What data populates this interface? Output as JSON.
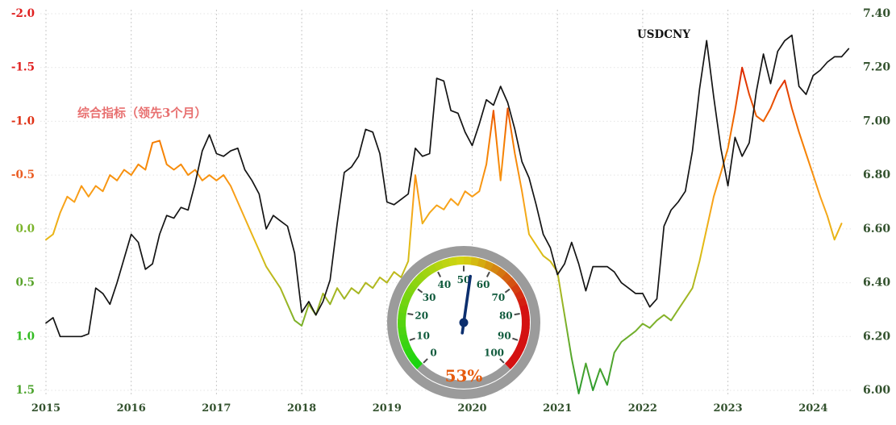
{
  "annotations": {
    "indicator_label": "综合指标（领先3个月）",
    "indicator_label_color": "#e87070",
    "usdcny_label": "USDCNY",
    "usdcny_label_color": "#141414"
  },
  "chart_data": {
    "type": "line",
    "title": "",
    "x_start_year": 2015,
    "x_step_months": 1,
    "x_tick_labels": [
      "2015",
      "2016",
      "2017",
      "2018",
      "2019",
      "2020",
      "2021",
      "2022",
      "2023",
      "2024"
    ],
    "x_axis_color": "#33522e",
    "grid": "dashed-vertical-yearly",
    "left_axis": {
      "min": -2.0,
      "max": 1.5,
      "inverted": true,
      "ticks": [
        -2.0,
        -1.5,
        -1.0,
        -0.5,
        0.0,
        0.5,
        1.0,
        1.5
      ],
      "tick_labels": [
        "-2.0",
        "-1.5",
        "-1.0",
        "-0.5",
        "0.0",
        "0.5",
        "1.0",
        "1.5"
      ],
      "tick_colors": [
        "#e02020",
        "#e02020",
        "#df3014",
        "#ea5c22",
        "#7ab32a",
        "#58a32a",
        "#32bb22",
        "#4ba32c"
      ]
    },
    "right_axis": {
      "min": 6.0,
      "max": 7.4,
      "ticks": [
        7.4,
        7.2,
        7.0,
        6.8,
        6.6,
        6.4,
        6.2,
        6.0
      ],
      "tick_labels": [
        "7.40",
        "7.20",
        "7.00",
        "6.80",
        "6.60",
        "6.40",
        "6.20",
        "6.00"
      ],
      "color": "#33522e"
    },
    "gradient_stops": [
      {
        "offset": 0.0,
        "color": "#c40000"
      },
      {
        "offset": 0.17,
        "color": "#e03000"
      },
      {
        "offset": 0.34,
        "color": "#f57c00"
      },
      {
        "offset": 0.5,
        "color": "#f9a21b"
      },
      {
        "offset": 0.62,
        "color": "#e3bc14"
      },
      {
        "offset": 0.72,
        "color": "#b0b820"
      },
      {
        "offset": 0.84,
        "color": "#74b02c"
      },
      {
        "offset": 1.0,
        "color": "#2e9b2e"
      }
    ],
    "series": [
      {
        "name": "综合指标（领先3个月）",
        "data_name": "composite-indicator-line",
        "axis": "left",
        "color_mode": "gradient",
        "width": 2,
        "values": [
          0.1,
          0.05,
          -0.15,
          -0.3,
          -0.25,
          -0.4,
          -0.3,
          -0.4,
          -0.35,
          -0.5,
          -0.45,
          -0.55,
          -0.5,
          -0.6,
          -0.55,
          -0.8,
          -0.82,
          -0.6,
          -0.55,
          -0.6,
          -0.5,
          -0.55,
          -0.45,
          -0.5,
          -0.45,
          -0.5,
          -0.4,
          -0.25,
          -0.1,
          0.05,
          0.2,
          0.35,
          0.45,
          0.55,
          0.7,
          0.85,
          0.9,
          0.7,
          0.8,
          0.6,
          0.7,
          0.55,
          0.65,
          0.55,
          0.6,
          0.5,
          0.55,
          0.45,
          0.5,
          0.4,
          0.45,
          0.3,
          -0.5,
          -0.05,
          -0.15,
          -0.22,
          -0.18,
          -0.28,
          -0.22,
          -0.35,
          -0.3,
          -0.35,
          -0.6,
          -1.1,
          -0.45,
          -1.12,
          -0.7,
          -0.35,
          0.05,
          0.15,
          0.25,
          0.3,
          0.4,
          0.8,
          1.2,
          1.53,
          1.25,
          1.5,
          1.3,
          1.45,
          1.15,
          1.05,
          1.0,
          0.95,
          0.88,
          0.92,
          0.85,
          0.8,
          0.85,
          0.75,
          0.65,
          0.55,
          0.3,
          0.0,
          -0.3,
          -0.52,
          -0.75,
          -1.1,
          -1.5,
          -1.25,
          -1.05,
          -1.0,
          -1.12,
          -1.28,
          -1.38,
          -1.12,
          -0.9,
          -0.7,
          -0.5,
          -0.3,
          -0.12,
          0.1,
          -0.05
        ]
      },
      {
        "name": "USDCNY",
        "data_name": "usdcny-line",
        "axis": "right",
        "color": "#141414",
        "width": 1.7,
        "values": [
          6.25,
          6.27,
          6.2,
          6.2,
          6.2,
          6.2,
          6.21,
          6.38,
          6.36,
          6.32,
          6.4,
          6.49,
          6.58,
          6.55,
          6.45,
          6.47,
          6.58,
          6.65,
          6.64,
          6.68,
          6.67,
          6.77,
          6.89,
          6.95,
          6.88,
          6.87,
          6.89,
          6.9,
          6.82,
          6.78,
          6.73,
          6.6,
          6.65,
          6.63,
          6.61,
          6.51,
          6.29,
          6.33,
          6.28,
          6.33,
          6.41,
          6.62,
          6.81,
          6.83,
          6.87,
          6.97,
          6.96,
          6.88,
          6.7,
          6.69,
          6.71,
          6.73,
          6.9,
          6.87,
          6.88,
          7.16,
          7.15,
          7.04,
          7.03,
          6.96,
          6.91,
          6.99,
          7.08,
          7.06,
          7.13,
          7.07,
          6.97,
          6.85,
          6.79,
          6.69,
          6.58,
          6.53,
          6.43,
          6.47,
          6.55,
          6.47,
          6.37,
          6.46,
          6.46,
          6.46,
          6.44,
          6.4,
          6.38,
          6.36,
          6.36,
          6.31,
          6.34,
          6.61,
          6.67,
          6.7,
          6.74,
          6.89,
          7.12,
          7.3,
          7.09,
          6.9,
          6.76,
          6.94,
          6.87,
          6.92,
          7.11,
          7.25,
          7.14,
          7.26,
          7.3,
          7.32,
          7.13,
          7.1,
          7.17,
          7.19,
          7.22,
          7.24,
          7.24,
          7.27
        ]
      }
    ]
  },
  "gauge": {
    "min": 0,
    "max": 100,
    "value": 53,
    "value_label": "53%",
    "tick_step": 10,
    "tick_labels": [
      "0",
      "10",
      "20",
      "30",
      "40",
      "50",
      "60",
      "70",
      "80",
      "90",
      "100"
    ],
    "ring_color": "#9b9b9b",
    "tick_color": "#4a4a4a",
    "tick_text_color": "#0f5a3c",
    "needle_color": "#0c2f6e",
    "value_label_color": "#e65c0f"
  }
}
